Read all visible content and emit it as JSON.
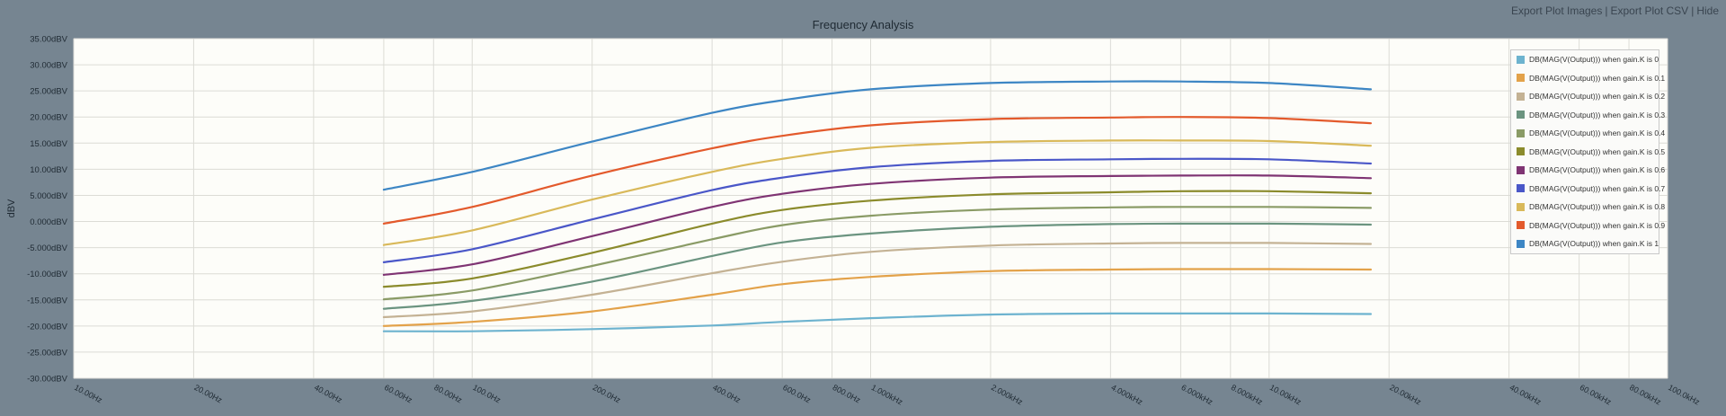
{
  "header": {
    "links": [
      "Export Plot Images",
      "Export Plot CSV",
      "Hide"
    ]
  },
  "chart_data": {
    "type": "line",
    "title": "Frequency Analysis",
    "xlabel": "",
    "ylabel": "dBV",
    "x_scale": "log",
    "xlim": [
      10,
      100000
    ],
    "ylim": [
      -30,
      35
    ],
    "grid": true,
    "legend_position": "top-right",
    "yticks": [
      35,
      30,
      25,
      20,
      15,
      10,
      5,
      0,
      -5,
      -10,
      -15,
      -20,
      -25,
      -30
    ],
    "ytick_labels": [
      "35.00dBV",
      "30.00dBV",
      "25.00dBV",
      "20.00dBV",
      "15.00dBV",
      "10.00dBV",
      "5.000dBV",
      "0.000dBV",
      "-5.000dBV",
      "-10.00dBV",
      "-15.00dBV",
      "-20.00dBV",
      "-25.00dBV",
      "-30.00dBV"
    ],
    "xticks": [
      10,
      20,
      40,
      60,
      80,
      100,
      200,
      400,
      600,
      800,
      1000,
      2000,
      4000,
      6000,
      8000,
      10000,
      20000,
      40000,
      60000,
      80000,
      100000
    ],
    "xtick_labels": [
      "10.00Hz",
      "20.00Hz",
      "40.00Hz",
      "60.00Hz",
      "80.00Hz",
      "100.0Hz",
      "200.0Hz",
      "400.0Hz",
      "600.0Hz",
      "800.0Hz",
      "1.000kHz",
      "2.000kHz",
      "4.000kHz",
      "6.000kHz",
      "8.000kHz",
      "10.00kHz",
      "20.00kHz",
      "40.00kHz",
      "60.00kHz",
      "80.00kHz",
      "100.0kHz"
    ],
    "x": [
      60,
      100,
      200,
      400,
      600,
      1000,
      2000,
      4000,
      6000,
      10000,
      18000
    ],
    "series": [
      {
        "name": "DB(MAG(V(Output))) when gain.K is 0",
        "color": "#6db3cf",
        "values": [
          -21.0,
          -21.0,
          -20.6,
          -19.9,
          -19.2,
          -18.5,
          -17.8,
          -17.6,
          -17.6,
          -17.6,
          -17.7
        ]
      },
      {
        "name": "DB(MAG(V(Output))) when gain.K is 0.1",
        "color": "#e3a24a",
        "values": [
          -20.0,
          -19.2,
          -17.2,
          -14.0,
          -12.0,
          -10.6,
          -9.5,
          -9.2,
          -9.1,
          -9.1,
          -9.2
        ]
      },
      {
        "name": "DB(MAG(V(Output))) when gain.K is 0.2",
        "color": "#c4b294",
        "values": [
          -18.3,
          -17.2,
          -14.0,
          -9.9,
          -7.7,
          -5.8,
          -4.6,
          -4.2,
          -4.1,
          -4.1,
          -4.3
        ]
      },
      {
        "name": "DB(MAG(V(Output))) when gain.K is 0.3",
        "color": "#6b9480",
        "values": [
          -16.7,
          -15.2,
          -11.5,
          -6.6,
          -4.0,
          -2.3,
          -1.0,
          -0.5,
          -0.4,
          -0.4,
          -0.6
        ]
      },
      {
        "name": "DB(MAG(V(Output))) when gain.K is 0.4",
        "color": "#8a9b66",
        "values": [
          -14.9,
          -13.2,
          -8.5,
          -3.4,
          -0.7,
          1.1,
          2.3,
          2.7,
          2.8,
          2.8,
          2.6
        ]
      },
      {
        "name": "DB(MAG(V(Output))) when gain.K is 0.5",
        "color": "#8b8b2c",
        "values": [
          -12.5,
          -10.9,
          -6.0,
          -0.4,
          2.2,
          4.0,
          5.2,
          5.6,
          5.8,
          5.8,
          5.4
        ]
      },
      {
        "name": "DB(MAG(V(Output))) when gain.K is 0.6",
        "color": "#7f3473",
        "values": [
          -10.2,
          -8.2,
          -2.8,
          2.8,
          5.3,
          7.2,
          8.4,
          8.7,
          8.8,
          8.8,
          8.3
        ]
      },
      {
        "name": "DB(MAG(V(Output))) when gain.K is 0.7",
        "color": "#4a57c8",
        "values": [
          -7.8,
          -5.3,
          0.4,
          6.0,
          8.4,
          10.4,
          11.6,
          11.9,
          12.0,
          11.9,
          11.1
        ]
      },
      {
        "name": "DB(MAG(V(Output))) when gain.K is 0.8",
        "color": "#d9b95a",
        "values": [
          -4.5,
          -1.7,
          4.2,
          9.5,
          12.0,
          14.1,
          15.2,
          15.5,
          15.5,
          15.4,
          14.5
        ]
      },
      {
        "name": "DB(MAG(V(Output))) when gain.K is 0.9",
        "color": "#e35a2c",
        "values": [
          -0.4,
          2.8,
          8.8,
          14.0,
          16.4,
          18.4,
          19.6,
          19.9,
          20.0,
          19.8,
          18.8
        ]
      },
      {
        "name": "DB(MAG(V(Output))) when gain.K is 1",
        "color": "#3d86c4",
        "values": [
          6.1,
          9.5,
          15.3,
          20.8,
          23.2,
          25.3,
          26.5,
          26.8,
          26.8,
          26.5,
          25.3
        ]
      }
    ]
  }
}
